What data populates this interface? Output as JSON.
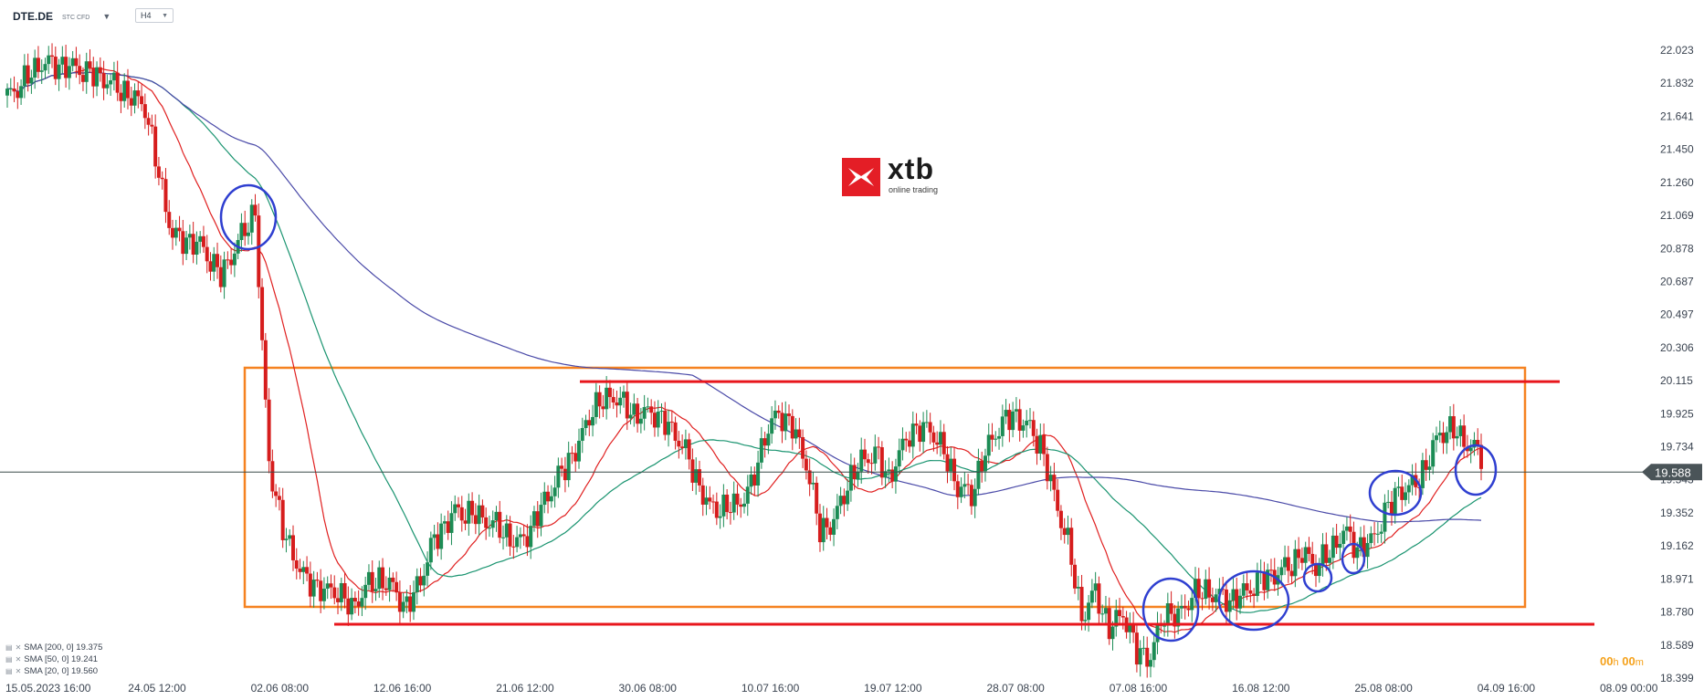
{
  "header": {
    "symbol": "DTE.DE",
    "instrument_type": "STC CFD",
    "dropdown_icon": "chevron-down-icon",
    "timeframe": "H4",
    "timeframe_icon": "chevron-down-icon"
  },
  "watermark": {
    "brand": "xtb",
    "tagline": "online trading"
  },
  "legend": [
    {
      "label": "SMA [200, 0] 19.375",
      "color": "#4a4aa8"
    },
    {
      "label": "SMA [50, 0] 19.241",
      "color": "#1a9470"
    },
    {
      "label": "SMA [20, 0] 19.560",
      "color": "#e02020"
    }
  ],
  "timer": {
    "hours": "00",
    "h_unit": "h",
    "minutes": "00",
    "m_unit": "m"
  },
  "colors": {
    "bull": "#1c8c55",
    "bear": "#d61d1d",
    "range_box": "#f58220",
    "levels": "#e8161c",
    "circles": "#2f3fd0",
    "price_line": "#3a4a48",
    "price_tag": "#4a5458"
  },
  "chart_data": {
    "type": "candlestick",
    "timeframe": "H4",
    "current_price": "19.588",
    "y_axis": {
      "ticks": [
        "22.023",
        "21.832",
        "21.641",
        "21.450",
        "21.260",
        "21.069",
        "20.878",
        "20.687",
        "20.497",
        "20.306",
        "20.115",
        "19.925",
        "19.734",
        "19.543",
        "19.352",
        "19.162",
        "18.971",
        "18.780",
        "18.589",
        "18.399"
      ],
      "range": [
        18.399,
        22.023
      ]
    },
    "x_axis": {
      "labels": [
        "15.05.2023   16:00",
        "24.05   12:00",
        "02.06   08:00",
        "12.06   16:00",
        "21.06   12:00",
        "30.06   08:00",
        "10.07   16:00",
        "19.07   12:00",
        "28.07   08:00",
        "07.08   16:00",
        "16.08   12:00",
        "25.08   08:00",
        "04.09   16:00",
        "08.09   00:00"
      ]
    },
    "levels": [
      {
        "name": "resistance",
        "value": 20.11
      },
      {
        "name": "support",
        "value": 18.71
      }
    ],
    "range_box": {
      "top": 20.19,
      "bottom": 18.81
    },
    "series": [
      {
        "name": "SMA [200, 0]",
        "last": 19.375,
        "color": "#4a4aa8"
      },
      {
        "name": "SMA [50, 0]",
        "last": 19.241,
        "color": "#1a9470"
      },
      {
        "name": "SMA [20, 0]",
        "last": 19.56,
        "color": "#e02020"
      }
    ]
  }
}
